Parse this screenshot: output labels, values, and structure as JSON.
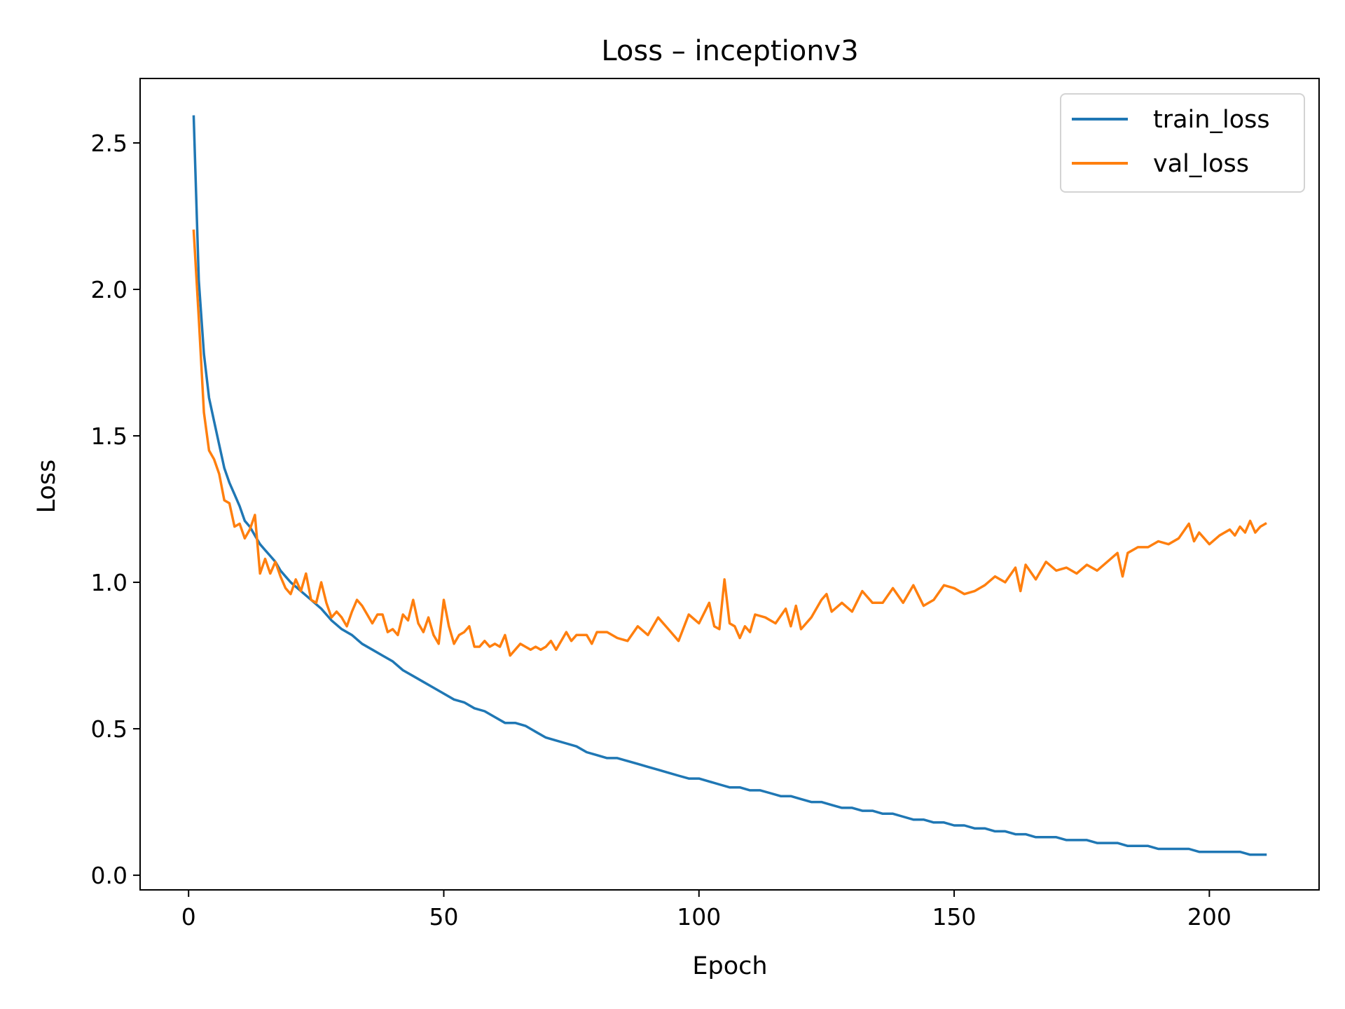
{
  "chart_data": {
    "type": "line",
    "title": "Loss – inceptionv3",
    "xlabel": "Epoch",
    "ylabel": "Loss",
    "xlim": [
      -9.5,
      221.5
    ],
    "ylim": [
      -0.05,
      2.72
    ],
    "x_ticks": [
      0,
      50,
      100,
      150,
      200
    ],
    "y_ticks": [
      0.0,
      0.5,
      1.0,
      1.5,
      2.0,
      2.5
    ],
    "x_tick_labels": [
      "0",
      "50",
      "100",
      "150",
      "200"
    ],
    "y_tick_labels": [
      "0.0",
      "0.5",
      "1.0",
      "1.5",
      "2.0",
      "2.5"
    ],
    "grid": false,
    "legend_position": "top-right",
    "x_start": 1,
    "x_end": 211,
    "series": [
      {
        "name": "train_loss",
        "color": "#1f77b4",
        "points": [
          [
            1,
            2.59
          ],
          [
            2,
            2.03
          ],
          [
            3,
            1.78
          ],
          [
            4,
            1.63
          ],
          [
            5,
            1.55
          ],
          [
            6,
            1.47
          ],
          [
            7,
            1.39
          ],
          [
            8,
            1.34
          ],
          [
            9,
            1.3
          ],
          [
            10,
            1.26
          ],
          [
            11,
            1.21
          ],
          [
            12,
            1.19
          ],
          [
            13,
            1.16
          ],
          [
            14,
            1.13
          ],
          [
            15,
            1.11
          ],
          [
            16,
            1.09
          ],
          [
            17,
            1.07
          ],
          [
            18,
            1.04
          ],
          [
            19,
            1.02
          ],
          [
            20,
            1.0
          ],
          [
            22,
            0.97
          ],
          [
            24,
            0.94
          ],
          [
            26,
            0.91
          ],
          [
            28,
            0.87
          ],
          [
            30,
            0.84
          ],
          [
            32,
            0.82
          ],
          [
            34,
            0.79
          ],
          [
            36,
            0.77
          ],
          [
            38,
            0.75
          ],
          [
            40,
            0.73
          ],
          [
            42,
            0.7
          ],
          [
            44,
            0.68
          ],
          [
            46,
            0.66
          ],
          [
            48,
            0.64
          ],
          [
            50,
            0.62
          ],
          [
            52,
            0.6
          ],
          [
            54,
            0.59
          ],
          [
            56,
            0.57
          ],
          [
            58,
            0.56
          ],
          [
            60,
            0.54
          ],
          [
            62,
            0.52
          ],
          [
            64,
            0.52
          ],
          [
            66,
            0.51
          ],
          [
            68,
            0.49
          ],
          [
            70,
            0.47
          ],
          [
            72,
            0.46
          ],
          [
            74,
            0.45
          ],
          [
            76,
            0.44
          ],
          [
            78,
            0.42
          ],
          [
            80,
            0.41
          ],
          [
            82,
            0.4
          ],
          [
            84,
            0.4
          ],
          [
            86,
            0.39
          ],
          [
            88,
            0.38
          ],
          [
            90,
            0.37
          ],
          [
            92,
            0.36
          ],
          [
            94,
            0.35
          ],
          [
            96,
            0.34
          ],
          [
            98,
            0.33
          ],
          [
            100,
            0.33
          ],
          [
            102,
            0.32
          ],
          [
            104,
            0.31
          ],
          [
            106,
            0.3
          ],
          [
            108,
            0.3
          ],
          [
            110,
            0.29
          ],
          [
            112,
            0.29
          ],
          [
            114,
            0.28
          ],
          [
            116,
            0.27
          ],
          [
            118,
            0.27
          ],
          [
            120,
            0.26
          ],
          [
            122,
            0.25
          ],
          [
            124,
            0.25
          ],
          [
            126,
            0.24
          ],
          [
            128,
            0.23
          ],
          [
            130,
            0.23
          ],
          [
            132,
            0.22
          ],
          [
            134,
            0.22
          ],
          [
            136,
            0.21
          ],
          [
            138,
            0.21
          ],
          [
            140,
            0.2
          ],
          [
            142,
            0.19
          ],
          [
            144,
            0.19
          ],
          [
            146,
            0.18
          ],
          [
            148,
            0.18
          ],
          [
            150,
            0.17
          ],
          [
            152,
            0.17
          ],
          [
            154,
            0.16
          ],
          [
            156,
            0.16
          ],
          [
            158,
            0.15
          ],
          [
            160,
            0.15
          ],
          [
            162,
            0.14
          ],
          [
            164,
            0.14
          ],
          [
            166,
            0.13
          ],
          [
            168,
            0.13
          ],
          [
            170,
            0.13
          ],
          [
            172,
            0.12
          ],
          [
            174,
            0.12
          ],
          [
            176,
            0.12
          ],
          [
            178,
            0.11
          ],
          [
            180,
            0.11
          ],
          [
            182,
            0.11
          ],
          [
            184,
            0.1
          ],
          [
            186,
            0.1
          ],
          [
            188,
            0.1
          ],
          [
            190,
            0.09
          ],
          [
            192,
            0.09
          ],
          [
            194,
            0.09
          ],
          [
            196,
            0.09
          ],
          [
            198,
            0.08
          ],
          [
            200,
            0.08
          ],
          [
            202,
            0.08
          ],
          [
            204,
            0.08
          ],
          [
            206,
            0.08
          ],
          [
            208,
            0.07
          ],
          [
            210,
            0.07
          ],
          [
            211,
            0.07
          ]
        ]
      },
      {
        "name": "val_loss",
        "color": "#ff7f0e",
        "points": [
          [
            1,
            2.2
          ],
          [
            2,
            1.9
          ],
          [
            3,
            1.58
          ],
          [
            4,
            1.45
          ],
          [
            5,
            1.42
          ],
          [
            6,
            1.37
          ],
          [
            7,
            1.28
          ],
          [
            8,
            1.27
          ],
          [
            9,
            1.19
          ],
          [
            10,
            1.2
          ],
          [
            11,
            1.15
          ],
          [
            12,
            1.18
          ],
          [
            13,
            1.23
          ],
          [
            14,
            1.03
          ],
          [
            15,
            1.08
          ],
          [
            16,
            1.03
          ],
          [
            17,
            1.07
          ],
          [
            18,
            1.02
          ],
          [
            19,
            0.98
          ],
          [
            20,
            0.96
          ],
          [
            21,
            1.01
          ],
          [
            22,
            0.97
          ],
          [
            23,
            1.03
          ],
          [
            24,
            0.94
          ],
          [
            25,
            0.93
          ],
          [
            26,
            1.0
          ],
          [
            27,
            0.93
          ],
          [
            28,
            0.88
          ],
          [
            29,
            0.9
          ],
          [
            30,
            0.88
          ],
          [
            31,
            0.85
          ],
          [
            32,
            0.9
          ],
          [
            33,
            0.94
          ],
          [
            34,
            0.92
          ],
          [
            35,
            0.89
          ],
          [
            36,
            0.86
          ],
          [
            37,
            0.89
          ],
          [
            38,
            0.89
          ],
          [
            39,
            0.83
          ],
          [
            40,
            0.84
          ],
          [
            41,
            0.82
          ],
          [
            42,
            0.89
          ],
          [
            43,
            0.87
          ],
          [
            44,
            0.94
          ],
          [
            45,
            0.86
          ],
          [
            46,
            0.83
          ],
          [
            47,
            0.88
          ],
          [
            48,
            0.82
          ],
          [
            49,
            0.79
          ],
          [
            50,
            0.94
          ],
          [
            51,
            0.85
          ],
          [
            52,
            0.79
          ],
          [
            53,
            0.82
          ],
          [
            54,
            0.83
          ],
          [
            55,
            0.85
          ],
          [
            56,
            0.78
          ],
          [
            57,
            0.78
          ],
          [
            58,
            0.8
          ],
          [
            59,
            0.78
          ],
          [
            60,
            0.79
          ],
          [
            61,
            0.78
          ],
          [
            62,
            0.82
          ],
          [
            63,
            0.75
          ],
          [
            64,
            0.77
          ],
          [
            65,
            0.79
          ],
          [
            66,
            0.78
          ],
          [
            67,
            0.77
          ],
          [
            68,
            0.78
          ],
          [
            69,
            0.77
          ],
          [
            70,
            0.78
          ],
          [
            71,
            0.8
          ],
          [
            72,
            0.77
          ],
          [
            73,
            0.8
          ],
          [
            74,
            0.83
          ],
          [
            75,
            0.8
          ],
          [
            76,
            0.82
          ],
          [
            77,
            0.82
          ],
          [
            78,
            0.82
          ],
          [
            79,
            0.79
          ],
          [
            80,
            0.83
          ],
          [
            82,
            0.83
          ],
          [
            84,
            0.81
          ],
          [
            86,
            0.8
          ],
          [
            88,
            0.85
          ],
          [
            90,
            0.82
          ],
          [
            92,
            0.88
          ],
          [
            94,
            0.84
          ],
          [
            96,
            0.8
          ],
          [
            98,
            0.89
          ],
          [
            100,
            0.86
          ],
          [
            102,
            0.93
          ],
          [
            103,
            0.85
          ],
          [
            104,
            0.84
          ],
          [
            105,
            1.01
          ],
          [
            106,
            0.86
          ],
          [
            107,
            0.85
          ],
          [
            108,
            0.81
          ],
          [
            109,
            0.85
          ],
          [
            110,
            0.83
          ],
          [
            111,
            0.89
          ],
          [
            113,
            0.88
          ],
          [
            115,
            0.86
          ],
          [
            117,
            0.91
          ],
          [
            118,
            0.85
          ],
          [
            119,
            0.92
          ],
          [
            120,
            0.84
          ],
          [
            122,
            0.88
          ],
          [
            124,
            0.94
          ],
          [
            125,
            0.96
          ],
          [
            126,
            0.9
          ],
          [
            128,
            0.93
          ],
          [
            130,
            0.9
          ],
          [
            132,
            0.97
          ],
          [
            134,
            0.93
          ],
          [
            136,
            0.93
          ],
          [
            138,
            0.98
          ],
          [
            140,
            0.93
          ],
          [
            142,
            0.99
          ],
          [
            144,
            0.92
          ],
          [
            146,
            0.94
          ],
          [
            148,
            0.99
          ],
          [
            150,
            0.98
          ],
          [
            152,
            0.96
          ],
          [
            154,
            0.97
          ],
          [
            156,
            0.99
          ],
          [
            158,
            1.02
          ],
          [
            160,
            1.0
          ],
          [
            162,
            1.05
          ],
          [
            163,
            0.97
          ],
          [
            164,
            1.06
          ],
          [
            166,
            1.01
          ],
          [
            168,
            1.07
          ],
          [
            170,
            1.04
          ],
          [
            172,
            1.05
          ],
          [
            174,
            1.03
          ],
          [
            176,
            1.06
          ],
          [
            178,
            1.04
          ],
          [
            180,
            1.07
          ],
          [
            182,
            1.1
          ],
          [
            183,
            1.02
          ],
          [
            184,
            1.1
          ],
          [
            186,
            1.12
          ],
          [
            188,
            1.12
          ],
          [
            190,
            1.14
          ],
          [
            192,
            1.13
          ],
          [
            194,
            1.15
          ],
          [
            196,
            1.2
          ],
          [
            197,
            1.14
          ],
          [
            198,
            1.17
          ],
          [
            200,
            1.13
          ],
          [
            202,
            1.16
          ],
          [
            204,
            1.18
          ],
          [
            205,
            1.16
          ],
          [
            206,
            1.19
          ],
          [
            207,
            1.17
          ],
          [
            208,
            1.21
          ],
          [
            209,
            1.17
          ],
          [
            210,
            1.19
          ],
          [
            211,
            1.2
          ]
        ]
      }
    ]
  }
}
